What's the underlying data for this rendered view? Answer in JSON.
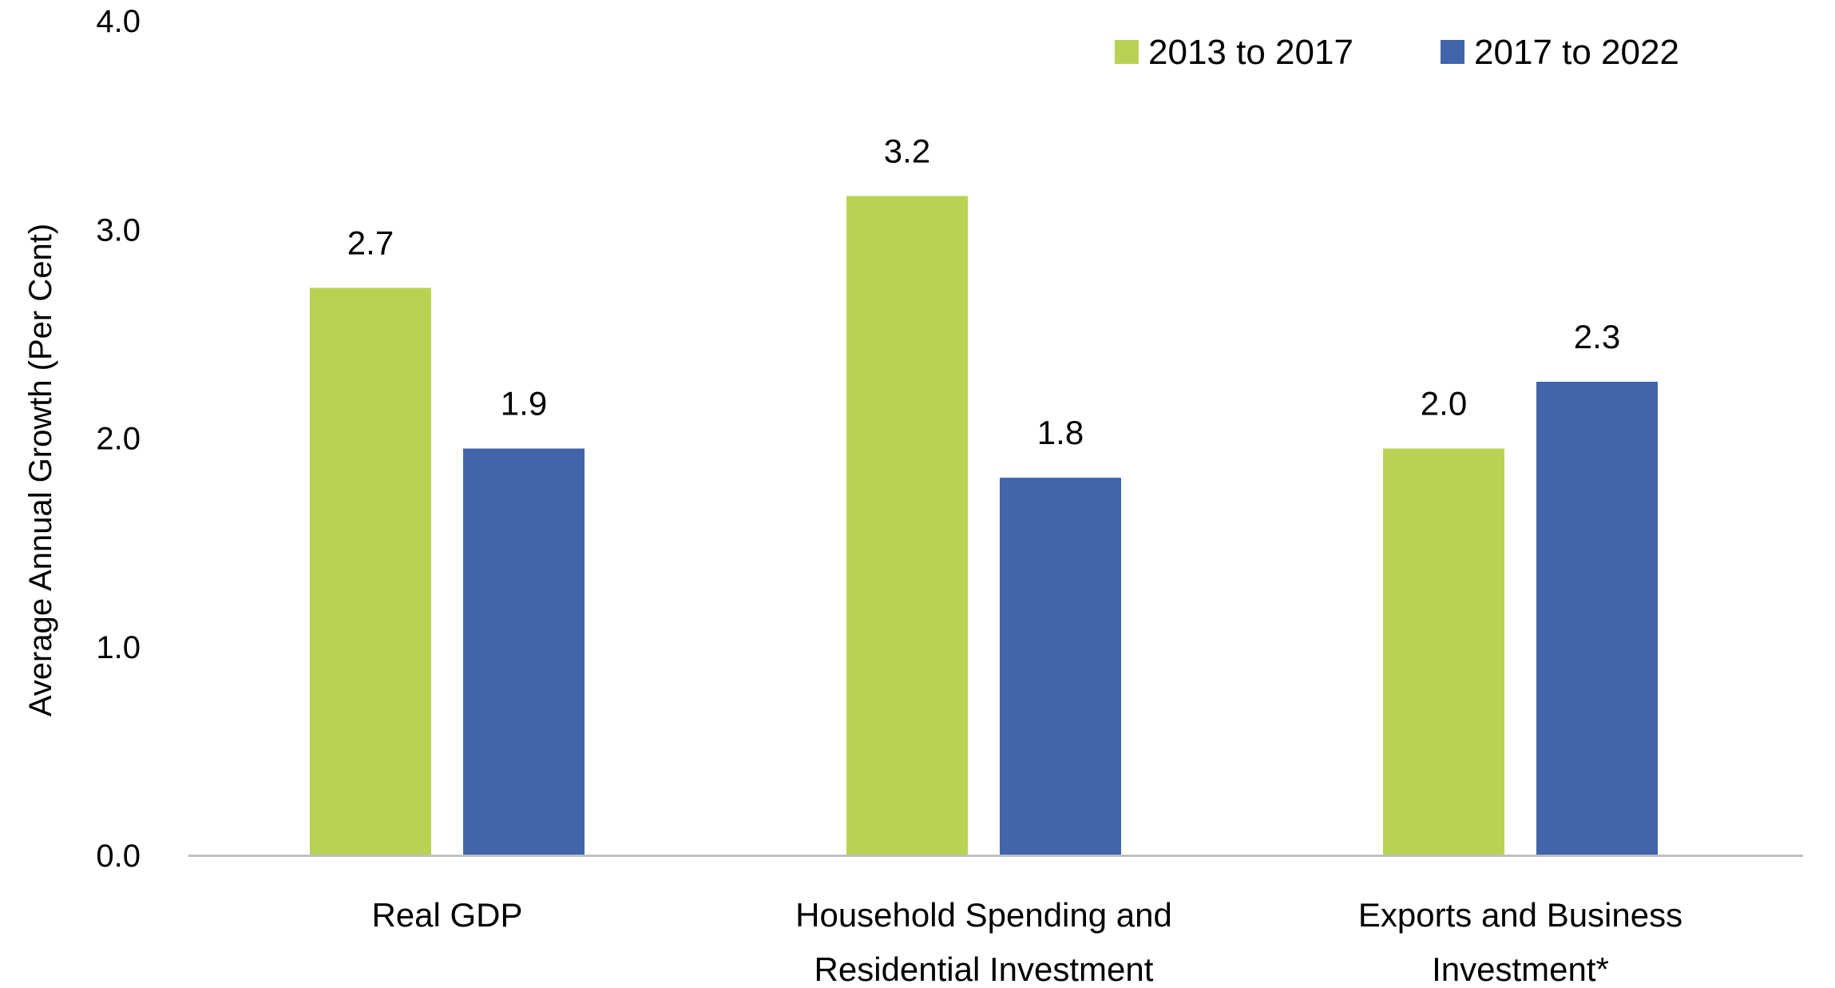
{
  "chart_data": {
    "type": "bar",
    "title": "",
    "xlabel": "",
    "ylabel": "Average Annual Growth (Per Cent)",
    "ylim": [
      0,
      4
    ],
    "yticks": [
      "0.0",
      "1.0",
      "2.0",
      "3.0",
      "4.0"
    ],
    "grid": false,
    "legend_position": "top-right",
    "categories": [
      [
        "Real GDP"
      ],
      [
        "Household Spending and",
        "Residential Investment"
      ],
      [
        "Exports and Business",
        "Investment*"
      ]
    ],
    "series": [
      {
        "name": "2013 to 2017",
        "color": "#b9d253",
        "values": [
          2.72,
          3.16,
          1.95
        ],
        "labels": [
          "2.7",
          "3.2",
          "2.0"
        ]
      },
      {
        "name": "2017 to 2022",
        "color": "#4264ab",
        "values": [
          1.95,
          1.81,
          2.27
        ],
        "labels": [
          "1.9",
          "1.8",
          "2.3"
        ]
      }
    ],
    "axis_color": "#bfbfbf"
  }
}
